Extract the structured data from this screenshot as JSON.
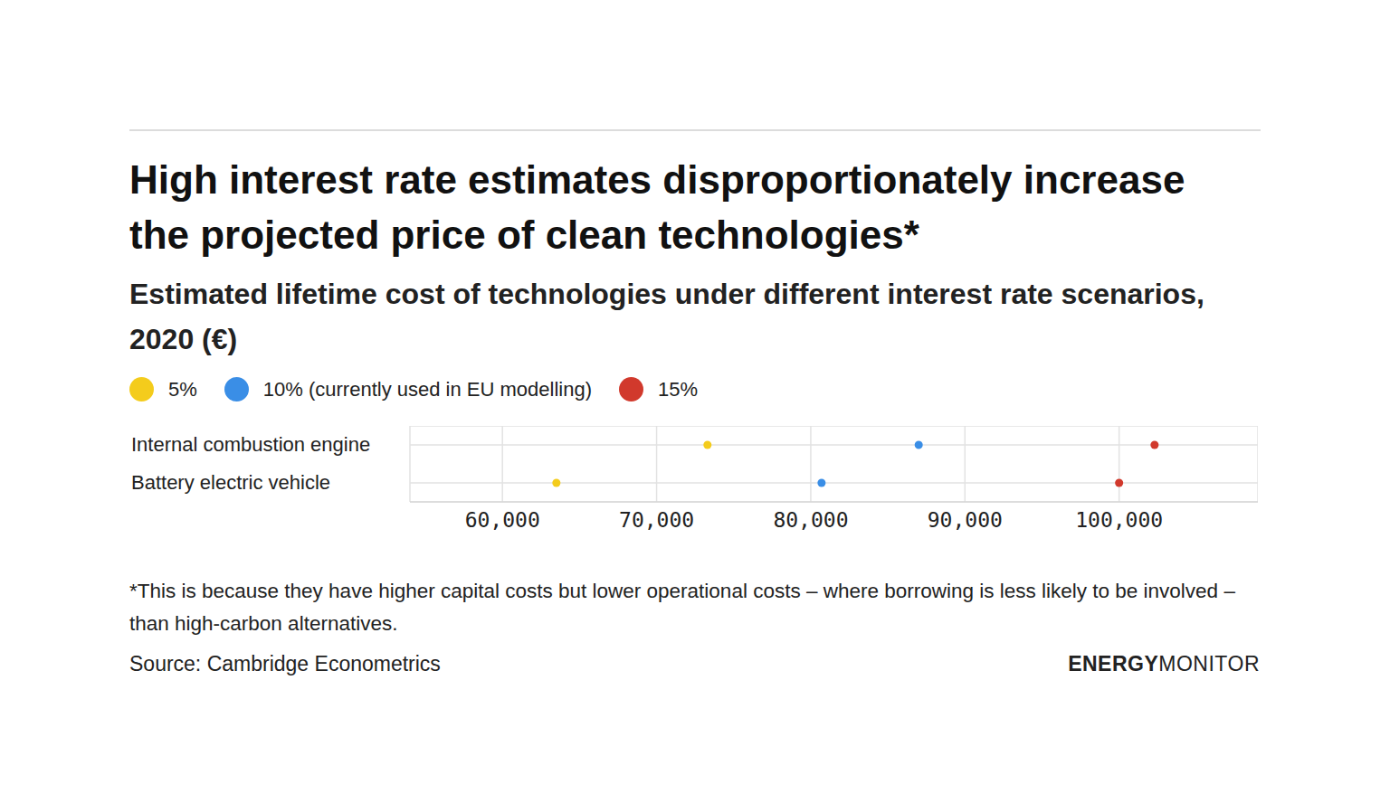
{
  "chart_data": {
    "type": "scatter",
    "title": "High interest rate estimates disproportionately increase the projected price of clean technologies*",
    "subtitle": "Estimated lifetime cost of technologies under different interest rate scenarios, 2020 (€)",
    "orientation": "horizontal",
    "categories": [
      "Internal combustion engine",
      "Battery electric vehicle"
    ],
    "series": [
      {
        "name": "5%",
        "color": "#f4cc1c",
        "values": [
          73300,
          63500
        ]
      },
      {
        "name": "10% (currently used in EU modelling)",
        "color": "#3a8ee6",
        "values": [
          87000,
          80700
        ]
      },
      {
        "name": "15%",
        "color": "#d1392c",
        "values": [
          102300,
          100000
        ]
      }
    ],
    "marker": "circle",
    "xlim": [
      54000,
      109000
    ],
    "xticks": [
      {
        "value": 60000,
        "label": "60,000"
      },
      {
        "value": 70000,
        "label": "70,000"
      },
      {
        "value": 80000,
        "label": "80,000"
      },
      {
        "value": 90000,
        "label": "90,000"
      },
      {
        "value": 100000,
        "label": "100,000"
      }
    ],
    "grid": true,
    "footnote": "*This is because they have higher capital costs but lower operational costs – where borrowing is less likely to be involved – than high-carbon alternatives.",
    "source": "Source: Cambridge Econometrics",
    "brand": {
      "bold": "ENERGY",
      "regular": "MONITOR"
    }
  }
}
